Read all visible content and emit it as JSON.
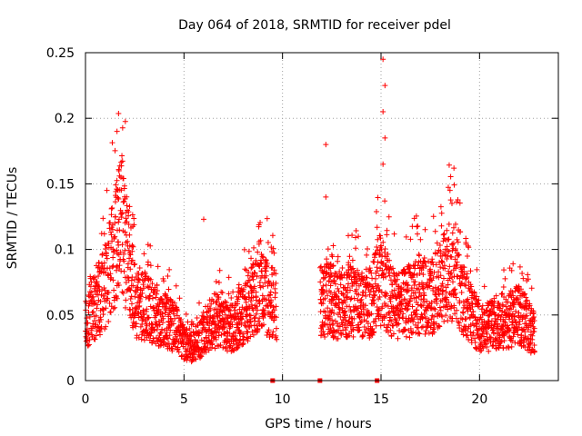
{
  "chart_data": {
    "type": "scatter",
    "title": "Day 064 of 2018, SRMTID for receiver pdel",
    "xlabel": "GPS time / hours",
    "ylabel": "SRMTID / TECUs",
    "xlim": [
      0,
      24
    ],
    "ylim": [
      0,
      0.25
    ],
    "xticks": [
      0,
      5,
      10,
      15,
      20
    ],
    "xtick_labels": [
      "0",
      "5",
      "10",
      "15",
      "20"
    ],
    "yticks": [
      0,
      0.05,
      0.1,
      0.15,
      0.2,
      0.25
    ],
    "ytick_labels": [
      "0",
      "0.05",
      "0.1",
      "0.15",
      "0.2",
      "0.25"
    ],
    "grid": true,
    "marker": "+",
    "marker_color": "#ff0000",
    "series": [
      {
        "name": "SRMTID",
        "segments": [
          {
            "x_start": 0.0,
            "x_end": 9.7
          },
          {
            "x_start": 11.9,
            "x_end": 22.8
          }
        ],
        "baseline_envelope": [
          {
            "x": 0.0,
            "y": 0.045
          },
          {
            "x": 0.5,
            "y": 0.055
          },
          {
            "x": 1.0,
            "y": 0.07
          },
          {
            "x": 1.5,
            "y": 0.1
          },
          {
            "x": 1.8,
            "y": 0.115
          },
          {
            "x": 2.2,
            "y": 0.09
          },
          {
            "x": 2.5,
            "y": 0.06
          },
          {
            "x": 3.0,
            "y": 0.055
          },
          {
            "x": 3.5,
            "y": 0.05
          },
          {
            "x": 4.0,
            "y": 0.045
          },
          {
            "x": 4.5,
            "y": 0.04
          },
          {
            "x": 5.0,
            "y": 0.028
          },
          {
            "x": 5.5,
            "y": 0.025
          },
          {
            "x": 6.0,
            "y": 0.035
          },
          {
            "x": 6.5,
            "y": 0.045
          },
          {
            "x": 7.0,
            "y": 0.042
          },
          {
            "x": 7.5,
            "y": 0.04
          },
          {
            "x": 8.0,
            "y": 0.05
          },
          {
            "x": 8.5,
            "y": 0.06
          },
          {
            "x": 9.0,
            "y": 0.065
          },
          {
            "x": 9.7,
            "y": 0.055
          },
          {
            "x": 11.9,
            "y": 0.06
          },
          {
            "x": 12.5,
            "y": 0.06
          },
          {
            "x": 13.0,
            "y": 0.055
          },
          {
            "x": 13.5,
            "y": 0.06
          },
          {
            "x": 14.0,
            "y": 0.055
          },
          {
            "x": 14.5,
            "y": 0.06
          },
          {
            "x": 15.0,
            "y": 0.075
          },
          {
            "x": 15.5,
            "y": 0.06
          },
          {
            "x": 16.0,
            "y": 0.055
          },
          {
            "x": 16.5,
            "y": 0.06
          },
          {
            "x": 17.0,
            "y": 0.065
          },
          {
            "x": 17.5,
            "y": 0.06
          },
          {
            "x": 18.0,
            "y": 0.07
          },
          {
            "x": 18.5,
            "y": 0.085
          },
          {
            "x": 19.0,
            "y": 0.07
          },
          {
            "x": 19.5,
            "y": 0.05
          },
          {
            "x": 20.0,
            "y": 0.04
          },
          {
            "x": 20.5,
            "y": 0.04
          },
          {
            "x": 21.0,
            "y": 0.045
          },
          {
            "x": 21.5,
            "y": 0.045
          },
          {
            "x": 22.0,
            "y": 0.05
          },
          {
            "x": 22.5,
            "y": 0.04
          },
          {
            "x": 22.8,
            "y": 0.035
          }
        ],
        "notable_points": [
          {
            "x": 1.6,
            "y": 0.19
          },
          {
            "x": 1.7,
            "y": 0.16
          },
          {
            "x": 1.8,
            "y": 0.155
          },
          {
            "x": 12.2,
            "y": 0.18
          },
          {
            "x": 12.2,
            "y": 0.14
          },
          {
            "x": 15.1,
            "y": 0.245
          },
          {
            "x": 15.2,
            "y": 0.225
          },
          {
            "x": 15.1,
            "y": 0.205
          },
          {
            "x": 15.2,
            "y": 0.185
          },
          {
            "x": 15.1,
            "y": 0.165
          },
          {
            "x": 18.7,
            "y": 0.162
          },
          {
            "x": 18.5,
            "y": 0.145
          },
          {
            "x": 18.6,
            "y": 0.135
          },
          {
            "x": 6.0,
            "y": 0.123
          }
        ]
      },
      {
        "name": "zero-value markers",
        "marker": "square",
        "points": [
          {
            "x": 9.5,
            "y": 0
          },
          {
            "x": 11.9,
            "y": 0
          },
          {
            "x": 14.8,
            "y": 0
          }
        ]
      }
    ]
  }
}
